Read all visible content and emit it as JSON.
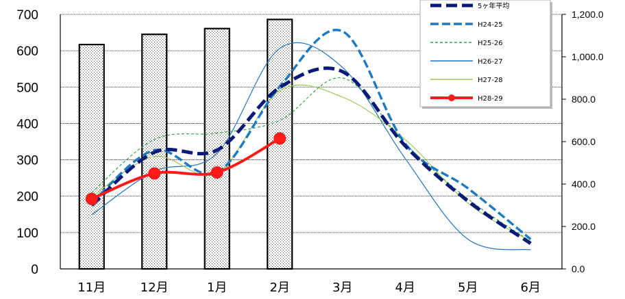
{
  "chart_data": {
    "type": "bar+line",
    "categories": [
      "11月",
      "12月",
      "1月",
      "2月",
      "3月",
      "4月",
      "5月",
      "6月"
    ],
    "y_left": {
      "ticks": [
        0,
        100,
        200,
        300,
        400,
        500,
        600,
        700
      ],
      "tick_labels": [
        "0",
        "100",
        "200",
        "300",
        "400",
        "500",
        "600",
        "700"
      ],
      "range": [
        0,
        700
      ]
    },
    "y_right": {
      "ticks": [
        0,
        200,
        400,
        600,
        800,
        1000,
        1200
      ],
      "tick_labels": [
        "0.0",
        "200.0",
        "400.0",
        "600.0",
        "800.0",
        "1,000.0",
        "1,200.0"
      ],
      "range": [
        0,
        1200
      ]
    },
    "bars": {
      "axis": "left",
      "values": [
        617,
        645,
        661,
        686
      ]
    },
    "series": [
      {
        "name": "5ヶ年平均",
        "axis": "right",
        "color": "#0a1a78",
        "style": "thick-dash",
        "values": [
          300,
          550,
          560,
          855,
          930,
          580,
          320,
          120
        ]
      },
      {
        "name": "H24-25",
        "axis": "right",
        "color": "#1f7ac0",
        "style": "dash",
        "values": [
          310,
          560,
          455,
          860,
          1120,
          590,
          380,
          140
        ]
      },
      {
        "name": "H25-26",
        "axis": "right",
        "color": "#33a642",
        "style": "dotted",
        "values": [
          360,
          610,
          640,
          700,
          900,
          590,
          330,
          130
        ]
      },
      {
        "name": "H26-27",
        "axis": "right",
        "color": "#1f74c4",
        "style": "solid-thin",
        "values": [
          255,
          460,
          545,
          1040,
          950,
          520,
          140,
          90
        ]
      },
      {
        "name": "H27-28",
        "axis": "right",
        "color": "#99cc55",
        "style": "solid-thin",
        "values": [
          340,
          530,
          450,
          840,
          810,
          610,
          310,
          130
        ]
      },
      {
        "name": "H28-29",
        "axis": "right",
        "color": "#ff1a1a",
        "style": "solid-markers",
        "values": [
          330,
          450,
          455,
          615,
          null,
          null,
          null,
          null
        ]
      }
    ],
    "grid": true,
    "legend_position": "top-right"
  }
}
